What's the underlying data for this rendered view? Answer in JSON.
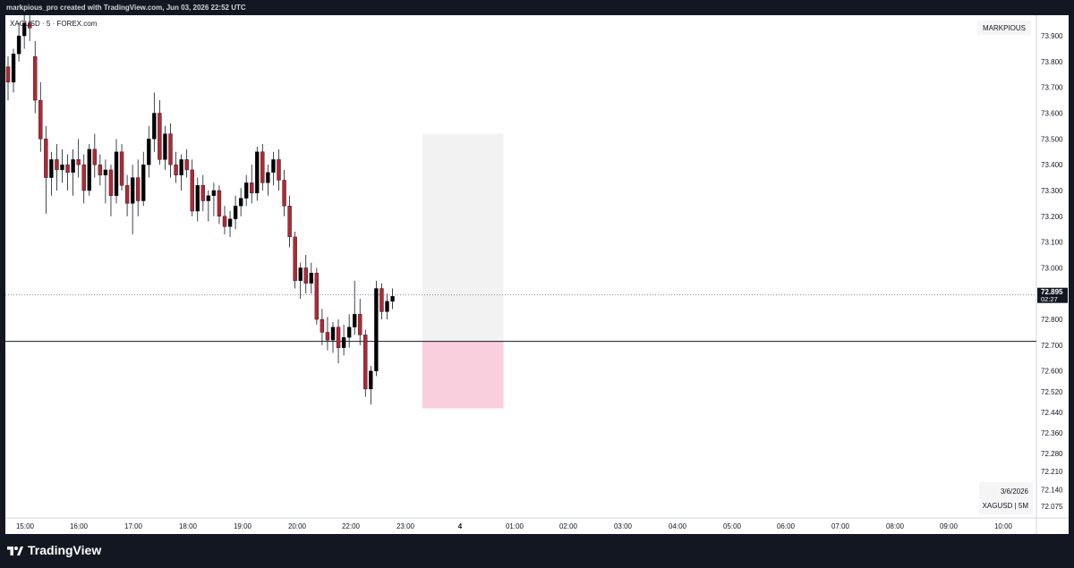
{
  "header": {
    "caption": "markpious_pro created with TradingView.com, Jun 03, 2026 22:52 UTC"
  },
  "footer": {
    "logo_text": "TradingView"
  },
  "colors": {
    "up": "#000000",
    "down": "#b22833",
    "zone_top": "#f2f2f2",
    "zone_bottom": "#f9cedd",
    "grid_bg": "#ffffff"
  },
  "chart_data": {
    "type": "candlestick",
    "symbol_label": "XAGUSD · 5 · FOREX.com",
    "watermark": "MARKPIOUS",
    "info_box": {
      "date": "3/6/2026",
      "ticker": "XAGUSD | 5M"
    },
    "current_price": {
      "value": "72.895",
      "countdown": "02:27",
      "numeric": 72.895
    },
    "horizontal_line": 72.715,
    "ylim": [
      72.03,
      73.98
    ],
    "y_ticks": [
      "73.900",
      "73.800",
      "73.700",
      "73.600",
      "73.500",
      "73.400",
      "73.300",
      "73.200",
      "73.100",
      "73.000",
      "72.800",
      "72.700",
      "72.600",
      "72.520",
      "72.440",
      "72.360",
      "72.280",
      "72.210",
      "72.140",
      "72.075"
    ],
    "x_ticks": [
      "15:00",
      "16:00",
      "17:00",
      "18:00",
      "19:00",
      "20:00",
      "22:00",
      "23:00",
      "4",
      "01:00",
      "02:00",
      "03:00",
      "04:00",
      "05:00",
      "06:00",
      "07:00",
      "08:00",
      "09:00",
      "10:00"
    ],
    "zones": [
      {
        "top": 73.52,
        "bottom": 72.715,
        "x_from": 76.5,
        "x_to": 91.5,
        "kind": "gray"
      },
      {
        "top": 72.715,
        "bottom": 72.455,
        "x_from": 76.5,
        "x_to": 91.5,
        "kind": "pink"
      }
    ],
    "candles": [
      [
        73.78,
        73.82,
        73.65,
        73.72
      ],
      [
        73.72,
        73.85,
        73.68,
        73.83
      ],
      [
        73.83,
        73.95,
        73.8,
        73.9
      ],
      [
        73.9,
        73.98,
        73.85,
        73.95
      ],
      [
        73.95,
        73.98,
        73.88,
        73.93
      ],
      [
        73.82,
        73.88,
        73.6,
        73.65
      ],
      [
        73.65,
        73.72,
        73.45,
        73.5
      ],
      [
        73.5,
        73.55,
        73.21,
        73.35
      ],
      [
        73.35,
        73.45,
        73.28,
        73.42
      ],
      [
        73.42,
        73.48,
        73.3,
        73.38
      ],
      [
        73.38,
        73.46,
        73.33,
        73.4
      ],
      [
        73.4,
        73.44,
        73.3,
        73.37
      ],
      [
        73.37,
        73.46,
        73.28,
        73.42
      ],
      [
        73.42,
        73.5,
        73.35,
        73.4
      ],
      [
        73.4,
        73.44,
        73.25,
        73.3
      ],
      [
        73.3,
        73.48,
        73.28,
        73.46
      ],
      [
        73.46,
        73.52,
        73.35,
        73.4
      ],
      [
        73.4,
        73.44,
        73.32,
        73.36
      ],
      [
        73.36,
        73.42,
        73.25,
        73.38
      ],
      [
        73.38,
        73.4,
        73.2,
        73.28
      ],
      [
        73.28,
        73.5,
        73.25,
        73.45
      ],
      [
        73.45,
        73.48,
        73.3,
        73.32
      ],
      [
        73.32,
        73.36,
        73.2,
        73.25
      ],
      [
        73.25,
        73.4,
        73.13,
        73.35
      ],
      [
        73.35,
        73.42,
        73.2,
        73.26
      ],
      [
        73.26,
        73.45,
        73.24,
        73.4
      ],
      [
        73.4,
        73.55,
        73.35,
        73.5
      ],
      [
        73.5,
        73.68,
        73.45,
        73.6
      ],
      [
        73.6,
        73.65,
        73.4,
        73.42
      ],
      [
        73.42,
        73.55,
        73.38,
        73.52
      ],
      [
        73.52,
        73.56,
        73.35,
        73.4
      ],
      [
        73.4,
        73.45,
        73.33,
        73.36
      ],
      [
        73.36,
        73.44,
        73.3,
        73.42
      ],
      [
        73.42,
        73.46,
        73.35,
        73.38
      ],
      [
        73.38,
        73.42,
        73.2,
        73.22
      ],
      [
        73.22,
        73.35,
        73.18,
        73.32
      ],
      [
        73.32,
        73.36,
        73.22,
        73.26
      ],
      [
        73.26,
        73.3,
        73.18,
        73.28
      ],
      [
        73.28,
        73.33,
        73.2,
        73.3
      ],
      [
        73.3,
        73.32,
        73.17,
        73.2
      ],
      [
        73.2,
        73.24,
        73.13,
        73.16
      ],
      [
        73.16,
        73.22,
        73.12,
        73.19
      ],
      [
        73.19,
        73.28,
        73.15,
        73.24
      ],
      [
        73.24,
        73.31,
        73.2,
        73.27
      ],
      [
        73.27,
        73.36,
        73.24,
        73.33
      ],
      [
        73.33,
        73.4,
        73.25,
        73.29
      ],
      [
        73.29,
        73.47,
        73.26,
        73.45
      ],
      [
        73.45,
        73.48,
        73.3,
        73.33
      ],
      [
        73.33,
        73.4,
        73.28,
        73.37
      ],
      [
        73.37,
        73.45,
        73.32,
        73.42
      ],
      [
        73.42,
        73.46,
        73.3,
        73.34
      ],
      [
        73.34,
        73.38,
        73.2,
        73.24
      ],
      [
        73.24,
        73.28,
        73.08,
        73.12
      ],
      [
        73.12,
        73.14,
        72.92,
        72.95
      ],
      [
        72.95,
        73.02,
        72.88,
        73.0
      ],
      [
        73.0,
        73.05,
        72.9,
        72.94
      ],
      [
        72.94,
        73.02,
        72.9,
        72.98
      ],
      [
        72.98,
        73.0,
        72.78,
        72.8
      ],
      [
        72.8,
        72.84,
        72.7,
        72.75
      ],
      [
        72.75,
        72.81,
        72.68,
        72.72
      ],
      [
        72.72,
        72.79,
        72.67,
        72.77
      ],
      [
        72.77,
        72.8,
        72.63,
        72.69
      ],
      [
        72.69,
        72.78,
        72.66,
        72.73
      ],
      [
        72.73,
        72.82,
        72.69,
        72.77
      ],
      [
        72.77,
        72.95,
        72.74,
        72.82
      ],
      [
        72.82,
        72.88,
        72.7,
        72.74
      ],
      [
        72.74,
        72.76,
        72.5,
        72.53
      ],
      [
        72.53,
        72.62,
        72.47,
        72.6
      ],
      [
        72.6,
        72.95,
        72.58,
        72.92
      ],
      [
        72.92,
        72.94,
        72.8,
        72.83
      ],
      [
        72.83,
        72.9,
        72.8,
        72.87
      ],
      [
        72.87,
        72.92,
        72.84,
        72.89
      ]
    ]
  }
}
